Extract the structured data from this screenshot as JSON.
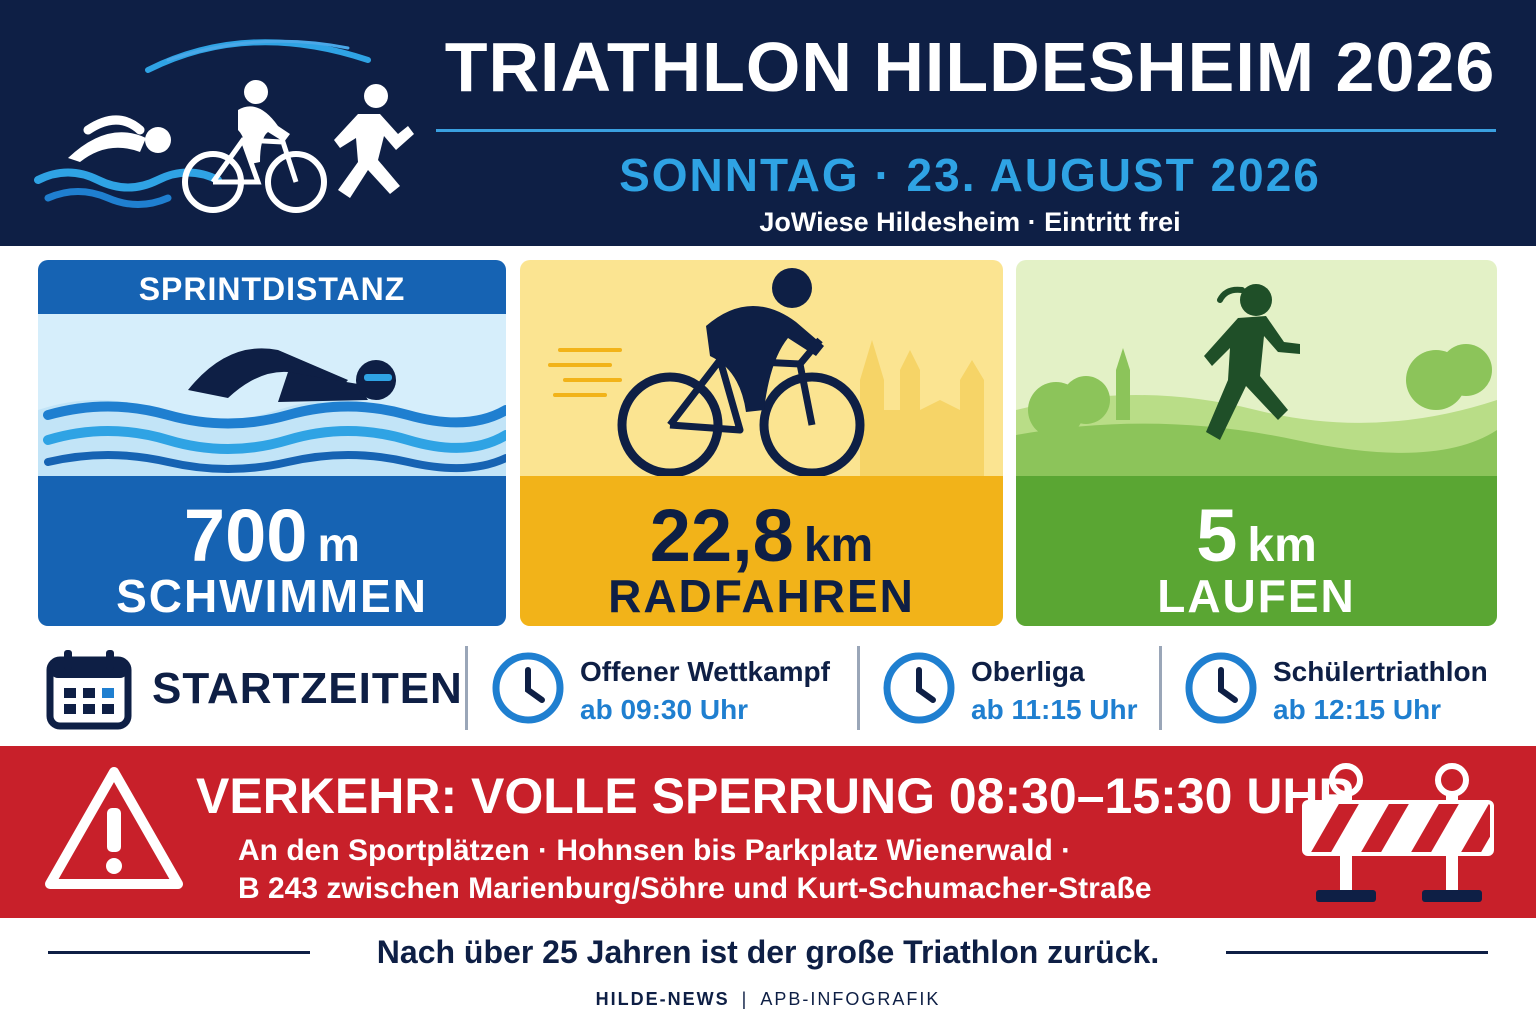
{
  "header": {
    "title": "TRIATHLON HILDESHEIM 2026",
    "date": "SONNTAG · 23. AUGUST 2026",
    "venue": "JoWiese Hildesheim  ·  Eintritt frei"
  },
  "disciplines": [
    {
      "top_label": "SPRINTDISTANZ",
      "distance": "700",
      "unit": "m",
      "sport": "SCHWIMMEN",
      "icon": "swimmer-icon"
    },
    {
      "distance": "22,8",
      "unit": "km",
      "sport": "RADFAHREN",
      "icon": "cyclist-icon"
    },
    {
      "distance": "5",
      "unit": "km",
      "sport": "LAUFEN",
      "icon": "runner-icon"
    }
  ],
  "start_times": {
    "label": "STARTZEITEN",
    "slots": [
      {
        "name": "Offener Wettkampf",
        "time": "ab 09:30 Uhr"
      },
      {
        "name": "Oberliga",
        "time": "ab 11:15 Uhr"
      },
      {
        "name": "Schülertriathlon",
        "time": "ab 12:15 Uhr"
      }
    ]
  },
  "traffic": {
    "title": "VERKEHR: VOLLE SPERRUNG 08:30–15:30 UHR",
    "line1": "An den Sportplätzen · Hohnsen bis Parkplatz Wienerwald ·",
    "line2": "B 243 zwischen Marienburg/Söhre und Kurt-Schumacher-Straße"
  },
  "footer": {
    "tagline": "Nach über 25 Jahren ist der große Triathlon zurück.",
    "credit_source": "HILDE-NEWS",
    "credit_sep": "|",
    "credit_type": "APB-INFOGRAFIK"
  },
  "colors": {
    "navy": "#0e1f45",
    "blue": "#1663b3",
    "sky": "#2fa3e4",
    "yellow": "#f2b319",
    "green": "#5aa633",
    "red": "#c8202a"
  }
}
